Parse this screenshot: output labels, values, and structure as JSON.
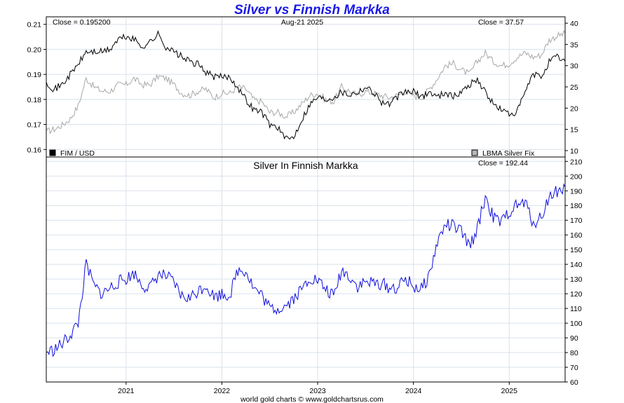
{
  "title": "Silver vs Finnish Markka",
  "footer": "world gold charts © www.goldchartsrus.com",
  "colors": {
    "title": "#1a1ae6",
    "fim": "#000000",
    "silver": "#a8a8a8",
    "blue": "#1010dd",
    "grid": "#d8e0ea"
  },
  "top_panel": {
    "close_left": "Close = 0.195200",
    "date": "Aug-21  2025",
    "close_right": "Close = 37.57",
    "legend_left": "FIM / USD",
    "legend_right": "LBMA Silver Fix"
  },
  "bottom_panel": {
    "title": "Silver In Finnish Markka",
    "close_right": "Close = 192.44"
  },
  "chart_data": [
    {
      "type": "line",
      "title": "Silver vs Finnish Markka",
      "x_range": [
        "2020-03",
        "2025-08"
      ],
      "x_ticks": [
        "2021",
        "2022",
        "2023",
        "2024",
        "2025"
      ],
      "y_left": {
        "ticks": [
          "0.16",
          "0.17",
          "0.18",
          "0.19",
          "0.20",
          "0.21"
        ],
        "ylim": [
          0.157,
          0.213
        ]
      },
      "y_right": {
        "ticks": [
          "10",
          "15",
          "20",
          "25",
          "30",
          "35",
          "40"
        ],
        "ylim": [
          8.5,
          41.5
        ]
      },
      "grid": true,
      "series": [
        {
          "name": "FIM / USD",
          "axis": "left",
          "x": [
            "2020-03",
            "2020-04",
            "2020-05",
            "2020-06",
            "2020-07",
            "2020-08",
            "2020-09",
            "2020-10",
            "2020-11",
            "2020-12",
            "2021-01",
            "2021-02",
            "2021-03",
            "2021-04",
            "2021-05",
            "2021-06",
            "2021-07",
            "2021-08",
            "2021-09",
            "2021-10",
            "2021-11",
            "2021-12",
            "2022-01",
            "2022-02",
            "2022-03",
            "2022-04",
            "2022-05",
            "2022-06",
            "2022-07",
            "2022-08",
            "2022-09",
            "2022-10",
            "2022-11",
            "2022-12",
            "2023-01",
            "2023-02",
            "2023-03",
            "2023-04",
            "2023-05",
            "2023-06",
            "2023-07",
            "2023-08",
            "2023-09",
            "2023-10",
            "2023-11",
            "2023-12",
            "2024-01",
            "2024-02",
            "2024-03",
            "2024-04",
            "2024-05",
            "2024-06",
            "2024-07",
            "2024-08",
            "2024-09",
            "2024-10",
            "2024-11",
            "2024-12",
            "2025-01",
            "2025-02",
            "2025-03",
            "2025-04",
            "2025-05",
            "2025-06",
            "2025-07",
            "2025-08"
          ],
          "values": [
            0.187,
            0.184,
            0.186,
            0.19,
            0.194,
            0.199,
            0.199,
            0.199,
            0.2,
            0.204,
            0.205,
            0.204,
            0.201,
            0.203,
            0.206,
            0.201,
            0.199,
            0.197,
            0.195,
            0.194,
            0.191,
            0.189,
            0.189,
            0.189,
            0.185,
            0.18,
            0.176,
            0.175,
            0.17,
            0.169,
            0.164,
            0.165,
            0.172,
            0.178,
            0.181,
            0.18,
            0.181,
            0.183,
            0.182,
            0.183,
            0.185,
            0.183,
            0.179,
            0.178,
            0.181,
            0.183,
            0.183,
            0.181,
            0.183,
            0.181,
            0.183,
            0.181,
            0.183,
            0.186,
            0.188,
            0.183,
            0.178,
            0.176,
            0.174,
            0.175,
            0.183,
            0.19,
            0.189,
            0.195,
            0.197,
            0.1952
          ]
        },
        {
          "name": "LBMA Silver Fix",
          "axis": "right",
          "x": [
            "2020-03",
            "2020-04",
            "2020-05",
            "2020-06",
            "2020-07",
            "2020-08",
            "2020-09",
            "2020-10",
            "2020-11",
            "2020-12",
            "2021-01",
            "2021-02",
            "2021-03",
            "2021-04",
            "2021-05",
            "2021-06",
            "2021-07",
            "2021-08",
            "2021-09",
            "2021-10",
            "2021-11",
            "2021-12",
            "2022-01",
            "2022-02",
            "2022-03",
            "2022-04",
            "2022-05",
            "2022-06",
            "2022-07",
            "2022-08",
            "2022-09",
            "2022-10",
            "2022-11",
            "2022-12",
            "2023-01",
            "2023-02",
            "2023-03",
            "2023-04",
            "2023-05",
            "2023-06",
            "2023-07",
            "2023-08",
            "2023-09",
            "2023-10",
            "2023-11",
            "2023-12",
            "2024-01",
            "2024-02",
            "2024-03",
            "2024-04",
            "2024-05",
            "2024-06",
            "2024-07",
            "2024-08",
            "2024-09",
            "2024-10",
            "2024-11",
            "2024-12",
            "2025-01",
            "2025-02",
            "2025-03",
            "2025-04",
            "2025-05",
            "2025-06",
            "2025-07",
            "2025-08"
          ],
          "values": [
            14.5,
            15.0,
            16.0,
            17.5,
            20.5,
            27.0,
            25.0,
            24.0,
            24.0,
            25.5,
            25.5,
            27.0,
            25.5,
            25.5,
            27.5,
            27.0,
            25.5,
            23.5,
            23.0,
            24.0,
            24.5,
            22.5,
            23.5,
            23.5,
            25.0,
            24.5,
            22.0,
            21.5,
            19.0,
            19.0,
            18.0,
            19.0,
            21.0,
            23.0,
            23.5,
            22.0,
            21.5,
            25.0,
            24.0,
            23.0,
            24.0,
            23.5,
            23.0,
            22.5,
            23.0,
            24.0,
            23.0,
            22.5,
            24.5,
            27.0,
            30.0,
            30.5,
            29.0,
            28.0,
            31.0,
            33.0,
            31.0,
            30.0,
            30.5,
            32.0,
            33.0,
            32.0,
            32.5,
            36.0,
            37.0,
            37.57
          ]
        }
      ]
    },
    {
      "type": "line",
      "title": "Silver In Finnish Markka",
      "x_range": [
        "2020-03",
        "2025-08"
      ],
      "x_ticks": [
        "2021",
        "2022",
        "2023",
        "2024",
        "2025"
      ],
      "y_right": {
        "ticks": [
          "60",
          "70",
          "80",
          "90",
          "100",
          "110",
          "120",
          "130",
          "140",
          "150",
          "160",
          "170",
          "180",
          "190",
          "200",
          "210"
        ],
        "ylim": [
          60,
          213
        ]
      },
      "grid": true,
      "series": [
        {
          "name": "",
          "x": [
            "2020-03",
            "2020-04",
            "2020-05",
            "2020-06",
            "2020-07",
            "2020-08",
            "2020-09",
            "2020-10",
            "2020-11",
            "2020-12",
            "2021-01",
            "2021-02",
            "2021-03",
            "2021-04",
            "2021-05",
            "2021-06",
            "2021-07",
            "2021-08",
            "2021-09",
            "2021-10",
            "2021-11",
            "2021-12",
            "2022-01",
            "2022-02",
            "2022-03",
            "2022-04",
            "2022-05",
            "2022-06",
            "2022-07",
            "2022-08",
            "2022-09",
            "2022-10",
            "2022-11",
            "2022-12",
            "2023-01",
            "2023-02",
            "2023-03",
            "2023-04",
            "2023-05",
            "2023-06",
            "2023-07",
            "2023-08",
            "2023-09",
            "2023-10",
            "2023-11",
            "2023-12",
            "2024-01",
            "2024-02",
            "2024-03",
            "2024-04",
            "2024-05",
            "2024-06",
            "2024-07",
            "2024-08",
            "2024-09",
            "2024-10",
            "2024-11",
            "2024-12",
            "2025-01",
            "2025-02",
            "2025-03",
            "2025-04",
            "2025-05",
            "2025-06",
            "2025-07",
            "2025-08"
          ],
          "values": [
            80,
            82,
            86,
            92,
            100,
            140,
            125,
            120,
            124,
            128,
            130,
            134,
            126,
            124,
            133,
            132,
            127,
            118,
            117,
            122,
            126,
            118,
            120,
            119,
            136,
            136,
            124,
            119,
            110,
            110,
            112,
            117,
            123,
            131,
            129,
            123,
            118,
            136,
            132,
            125,
            128,
            127,
            127,
            124,
            124,
            130,
            125,
            123,
            133,
            155,
            167,
            166,
            162,
            152,
            164,
            186,
            172,
            168,
            176,
            180,
            182,
            168,
            172,
            186,
            190,
            192.44
          ]
        }
      ]
    }
  ]
}
